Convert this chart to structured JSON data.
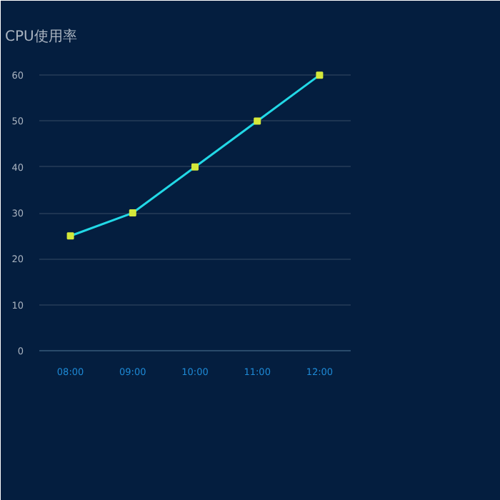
{
  "chart_data": {
    "type": "line",
    "ylabel": "CPU使用率",
    "categories": [
      "08:00",
      "09:00",
      "10:00",
      "11:00",
      "12:00"
    ],
    "series": [
      {
        "color": "#22d8e6",
        "values": [
          25,
          30,
          40,
          50,
          60
        ]
      }
    ],
    "marker": "square",
    "ylim": [
      0,
      65
    ],
    "yticks": [
      0,
      10,
      20,
      30,
      40,
      50,
      60
    ],
    "grid": "y"
  }
}
